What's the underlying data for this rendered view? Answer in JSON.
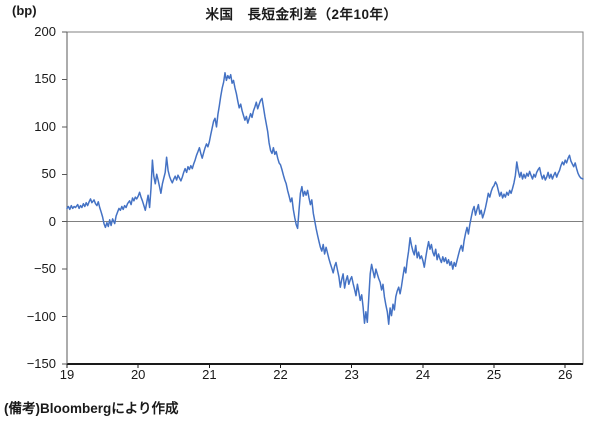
{
  "chart": {
    "title": "米国　長短金利差（2年10年）",
    "unit_label": "(bp)",
    "source_note": "(備考)Bloombergにより作成"
  },
  "chart_data": {
    "type": "line",
    "title": "米国　長短金利差（2年10年）",
    "xlabel": "",
    "ylabel": "(bp)",
    "xlim": [
      19,
      26.25
    ],
    "ylim": [
      -150,
      200
    ],
    "grid": "zero-line-only",
    "legend": "none",
    "line_color": "#4472C4",
    "zero_line_color": "#808080",
    "frame_color": "#808080",
    "x_ticks": {
      "values": [
        19,
        20,
        21,
        22,
        23,
        24,
        25,
        26
      ],
      "labels": [
        "19",
        "20",
        "21",
        "22",
        "23",
        "24",
        "25",
        "26"
      ]
    },
    "y_ticks": {
      "values": [
        200,
        150,
        100,
        50,
        0,
        -50,
        -100,
        -150
      ],
      "labels": [
        "200",
        "150",
        "100",
        "50",
        "0",
        "−50",
        "−100",
        "−150"
      ]
    },
    "series_name": "米国 長短金利差（2年10年）",
    "points": [
      [
        19.0,
        14
      ],
      [
        19.02,
        16
      ],
      [
        19.04,
        13
      ],
      [
        19.06,
        17
      ],
      [
        19.08,
        14
      ],
      [
        19.1,
        16
      ],
      [
        19.12,
        15
      ],
      [
        19.15,
        18
      ],
      [
        19.17,
        14
      ],
      [
        19.19,
        17
      ],
      [
        19.21,
        15
      ],
      [
        19.23,
        19
      ],
      [
        19.25,
        16
      ],
      [
        19.27,
        20
      ],
      [
        19.29,
        17
      ],
      [
        19.31,
        21
      ],
      [
        19.33,
        24
      ],
      [
        19.35,
        20
      ],
      [
        19.38,
        23
      ],
      [
        19.4,
        19
      ],
      [
        19.42,
        17
      ],
      [
        19.44,
        21
      ],
      [
        19.46,
        15
      ],
      [
        19.48,
        10
      ],
      [
        19.5,
        5
      ],
      [
        19.52,
        -2
      ],
      [
        19.54,
        -6
      ],
      [
        19.56,
        -1
      ],
      [
        19.58,
        -5
      ],
      [
        19.6,
        2
      ],
      [
        19.62,
        -4
      ],
      [
        19.64,
        3
      ],
      [
        19.67,
        -2
      ],
      [
        19.69,
        6
      ],
      [
        19.71,
        10
      ],
      [
        19.73,
        14
      ],
      [
        19.75,
        12
      ],
      [
        19.77,
        16
      ],
      [
        19.79,
        13
      ],
      [
        19.81,
        17
      ],
      [
        19.83,
        15
      ],
      [
        19.85,
        19
      ],
      [
        19.88,
        22
      ],
      [
        19.9,
        18
      ],
      [
        19.92,
        25
      ],
      [
        19.94,
        22
      ],
      [
        19.96,
        26
      ],
      [
        19.98,
        24
      ],
      [
        20.0,
        27
      ],
      [
        20.02,
        31
      ],
      [
        20.04,
        26
      ],
      [
        20.06,
        22
      ],
      [
        20.08,
        17
      ],
      [
        20.1,
        12
      ],
      [
        20.12,
        20
      ],
      [
        20.14,
        28
      ],
      [
        20.16,
        15
      ],
      [
        20.18,
        35
      ],
      [
        20.2,
        65
      ],
      [
        20.22,
        48
      ],
      [
        20.24,
        40
      ],
      [
        20.26,
        50
      ],
      [
        20.28,
        44
      ],
      [
        20.3,
        37
      ],
      [
        20.32,
        30
      ],
      [
        20.34,
        40
      ],
      [
        20.36,
        46
      ],
      [
        20.38,
        52
      ],
      [
        20.4,
        68
      ],
      [
        20.42,
        54
      ],
      [
        20.44,
        48
      ],
      [
        20.46,
        44
      ],
      [
        20.48,
        41
      ],
      [
        20.5,
        45
      ],
      [
        20.52,
        48
      ],
      [
        20.54,
        44
      ],
      [
        20.56,
        49
      ],
      [
        20.58,
        46
      ],
      [
        20.6,
        43
      ],
      [
        20.62,
        47
      ],
      [
        20.64,
        52
      ],
      [
        20.66,
        56
      ],
      [
        20.68,
        52
      ],
      [
        20.7,
        58
      ],
      [
        20.72,
        55
      ],
      [
        20.74,
        59
      ],
      [
        20.76,
        56
      ],
      [
        20.78,
        61
      ],
      [
        20.8,
        65
      ],
      [
        20.82,
        70
      ],
      [
        20.84,
        74
      ],
      [
        20.86,
        78
      ],
      [
        20.88,
        72
      ],
      [
        20.9,
        67
      ],
      [
        20.92,
        73
      ],
      [
        20.94,
        78
      ],
      [
        20.96,
        82
      ],
      [
        20.98,
        79
      ],
      [
        21.0,
        84
      ],
      [
        21.02,
        92
      ],
      [
        21.04,
        99
      ],
      [
        21.06,
        106
      ],
      [
        21.08,
        109
      ],
      [
        21.1,
        100
      ],
      [
        21.12,
        113
      ],
      [
        21.14,
        122
      ],
      [
        21.16,
        132
      ],
      [
        21.18,
        141
      ],
      [
        21.2,
        147
      ],
      [
        21.22,
        157
      ],
      [
        21.24,
        149
      ],
      [
        21.26,
        154
      ],
      [
        21.28,
        151
      ],
      [
        21.3,
        155
      ],
      [
        21.32,
        146
      ],
      [
        21.34,
        149
      ],
      [
        21.36,
        141
      ],
      [
        21.38,
        135
      ],
      [
        21.4,
        127
      ],
      [
        21.42,
        120
      ],
      [
        21.44,
        124
      ],
      [
        21.46,
        117
      ],
      [
        21.48,
        112
      ],
      [
        21.5,
        107
      ],
      [
        21.52,
        111
      ],
      [
        21.54,
        104
      ],
      [
        21.56,
        109
      ],
      [
        21.58,
        114
      ],
      [
        21.6,
        110
      ],
      [
        21.62,
        117
      ],
      [
        21.64,
        121
      ],
      [
        21.66,
        126
      ],
      [
        21.68,
        119
      ],
      [
        21.7,
        124
      ],
      [
        21.72,
        128
      ],
      [
        21.74,
        130
      ],
      [
        21.76,
        121
      ],
      [
        21.78,
        111
      ],
      [
        21.8,
        103
      ],
      [
        21.82,
        95
      ],
      [
        21.84,
        83
      ],
      [
        21.86,
        75
      ],
      [
        21.88,
        72
      ],
      [
        21.9,
        78
      ],
      [
        21.92,
        71
      ],
      [
        21.94,
        74
      ],
      [
        21.96,
        67
      ],
      [
        21.98,
        62
      ],
      [
        22.0,
        60
      ],
      [
        22.02,
        55
      ],
      [
        22.04,
        49
      ],
      [
        22.06,
        44
      ],
      [
        22.08,
        40
      ],
      [
        22.1,
        33
      ],
      [
        22.12,
        27
      ],
      [
        22.14,
        21
      ],
      [
        22.16,
        25
      ],
      [
        22.18,
        13
      ],
      [
        22.2,
        4
      ],
      [
        22.22,
        -3
      ],
      [
        22.24,
        -7
      ],
      [
        22.26,
        12
      ],
      [
        22.28,
        30
      ],
      [
        22.3,
        37
      ],
      [
        22.32,
        27
      ],
      [
        22.34,
        32
      ],
      [
        22.36,
        28
      ],
      [
        22.38,
        33
      ],
      [
        22.4,
        25
      ],
      [
        22.42,
        18
      ],
      [
        22.44,
        23
      ],
      [
        22.46,
        9
      ],
      [
        22.48,
        1
      ],
      [
        22.5,
        -7
      ],
      [
        22.52,
        -14
      ],
      [
        22.54,
        -21
      ],
      [
        22.56,
        -27
      ],
      [
        22.58,
        -31
      ],
      [
        22.6,
        -24
      ],
      [
        22.62,
        -34
      ],
      [
        22.64,
        -27
      ],
      [
        22.66,
        -33
      ],
      [
        22.68,
        -39
      ],
      [
        22.7,
        -44
      ],
      [
        22.72,
        -49
      ],
      [
        22.74,
        -54
      ],
      [
        22.76,
        -47
      ],
      [
        22.78,
        -43
      ],
      [
        22.8,
        -51
      ],
      [
        22.82,
        -58
      ],
      [
        22.84,
        -69
      ],
      [
        22.86,
        -61
      ],
      [
        22.88,
        -55
      ],
      [
        22.9,
        -70
      ],
      [
        22.92,
        -62
      ],
      [
        22.94,
        -57
      ],
      [
        22.96,
        -66
      ],
      [
        22.98,
        -61
      ],
      [
        23.0,
        -58
      ],
      [
        23.02,
        -65
      ],
      [
        23.04,
        -71
      ],
      [
        23.06,
        -78
      ],
      [
        23.08,
        -66
      ],
      [
        23.1,
        -74
      ],
      [
        23.12,
        -83
      ],
      [
        23.14,
        -77
      ],
      [
        23.16,
        -90
      ],
      [
        23.18,
        -107
      ],
      [
        23.2,
        -95
      ],
      [
        23.22,
        -106
      ],
      [
        23.24,
        -80
      ],
      [
        23.26,
        -55
      ],
      [
        23.28,
        -45
      ],
      [
        23.3,
        -52
      ],
      [
        23.32,
        -59
      ],
      [
        23.34,
        -50
      ],
      [
        23.36,
        -55
      ],
      [
        23.38,
        -60
      ],
      [
        23.4,
        -64
      ],
      [
        23.42,
        -72
      ],
      [
        23.44,
        -66
      ],
      [
        23.46,
        -79
      ],
      [
        23.48,
        -88
      ],
      [
        23.5,
        -95
      ],
      [
        23.52,
        -108
      ],
      [
        23.54,
        -91
      ],
      [
        23.56,
        -99
      ],
      [
        23.58,
        -87
      ],
      [
        23.6,
        -93
      ],
      [
        23.62,
        -79
      ],
      [
        23.64,
        -73
      ],
      [
        23.66,
        -69
      ],
      [
        23.68,
        -76
      ],
      [
        23.7,
        -68
      ],
      [
        23.72,
        -58
      ],
      [
        23.74,
        -48
      ],
      [
        23.76,
        -54
      ],
      [
        23.78,
        -41
      ],
      [
        23.8,
        -31
      ],
      [
        23.82,
        -17
      ],
      [
        23.84,
        -25
      ],
      [
        23.86,
        -31
      ],
      [
        23.88,
        -35
      ],
      [
        23.9,
        -25
      ],
      [
        23.92,
        -38
      ],
      [
        23.94,
        -32
      ],
      [
        23.96,
        -39
      ],
      [
        23.98,
        -36
      ],
      [
        24.0,
        -41
      ],
      [
        24.02,
        -48
      ],
      [
        24.04,
        -38
      ],
      [
        24.06,
        -29
      ],
      [
        24.08,
        -21
      ],
      [
        24.1,
        -29
      ],
      [
        24.12,
        -24
      ],
      [
        24.14,
        -32
      ],
      [
        24.16,
        -36
      ],
      [
        24.18,
        -29
      ],
      [
        24.2,
        -40
      ],
      [
        24.22,
        -34
      ],
      [
        24.24,
        -39
      ],
      [
        24.26,
        -43
      ],
      [
        24.28,
        -37
      ],
      [
        24.3,
        -42
      ],
      [
        24.32,
        -38
      ],
      [
        24.34,
        -44
      ],
      [
        24.36,
        -40
      ],
      [
        24.38,
        -46
      ],
      [
        24.4,
        -42
      ],
      [
        24.42,
        -50
      ],
      [
        24.44,
        -43
      ],
      [
        24.46,
        -47
      ],
      [
        24.48,
        -41
      ],
      [
        24.5,
        -35
      ],
      [
        24.52,
        -29
      ],
      [
        24.54,
        -25
      ],
      [
        24.56,
        -31
      ],
      [
        24.58,
        -20
      ],
      [
        24.6,
        -12
      ],
      [
        24.62,
        -6
      ],
      [
        24.64,
        -13
      ],
      [
        24.66,
        -3
      ],
      [
        24.68,
        5
      ],
      [
        24.7,
        12
      ],
      [
        24.72,
        16
      ],
      [
        24.74,
        7
      ],
      [
        24.76,
        13
      ],
      [
        24.78,
        18
      ],
      [
        24.8,
        8
      ],
      [
        24.82,
        12
      ],
      [
        24.84,
        4
      ],
      [
        24.86,
        9
      ],
      [
        24.88,
        15
      ],
      [
        24.9,
        22
      ],
      [
        24.92,
        30
      ],
      [
        24.94,
        26
      ],
      [
        24.96,
        32
      ],
      [
        24.98,
        36
      ],
      [
        25.0,
        38
      ],
      [
        25.02,
        42
      ],
      [
        25.04,
        39
      ],
      [
        25.06,
        33
      ],
      [
        25.08,
        27
      ],
      [
        25.1,
        31
      ],
      [
        25.12,
        25
      ],
      [
        25.14,
        29
      ],
      [
        25.16,
        26
      ],
      [
        25.18,
        31
      ],
      [
        25.2,
        28
      ],
      [
        25.22,
        33
      ],
      [
        25.24,
        30
      ],
      [
        25.26,
        35
      ],
      [
        25.28,
        41
      ],
      [
        25.3,
        49
      ],
      [
        25.32,
        63
      ],
      [
        25.34,
        54
      ],
      [
        25.36,
        47
      ],
      [
        25.38,
        52
      ],
      [
        25.4,
        45
      ],
      [
        25.42,
        50
      ],
      [
        25.44,
        46
      ],
      [
        25.46,
        51
      ],
      [
        25.48,
        48
      ],
      [
        25.5,
        53
      ],
      [
        25.52,
        49
      ],
      [
        25.54,
        45
      ],
      [
        25.56,
        50
      ],
      [
        25.58,
        47
      ],
      [
        25.6,
        52
      ],
      [
        25.62,
        55
      ],
      [
        25.64,
        57
      ],
      [
        25.66,
        50
      ],
      [
        25.68,
        45
      ],
      [
        25.7,
        49
      ],
      [
        25.72,
        44
      ],
      [
        25.74,
        47
      ],
      [
        25.76,
        52
      ],
      [
        25.78,
        46
      ],
      [
        25.8,
        50
      ],
      [
        25.82,
        45
      ],
      [
        25.84,
        49
      ],
      [
        25.86,
        52
      ],
      [
        25.88,
        47
      ],
      [
        25.9,
        51
      ],
      [
        25.92,
        54
      ],
      [
        25.94,
        59
      ],
      [
        25.96,
        63
      ],
      [
        25.98,
        60
      ],
      [
        26.0,
        65
      ],
      [
        26.02,
        62
      ],
      [
        26.04,
        67
      ],
      [
        26.06,
        70
      ],
      [
        26.08,
        64
      ],
      [
        26.1,
        61
      ],
      [
        26.12,
        58
      ],
      [
        26.14,
        62
      ],
      [
        26.16,
        56
      ],
      [
        26.18,
        51
      ],
      [
        26.2,
        48
      ],
      [
        26.22,
        46
      ],
      [
        26.25,
        45
      ]
    ]
  }
}
